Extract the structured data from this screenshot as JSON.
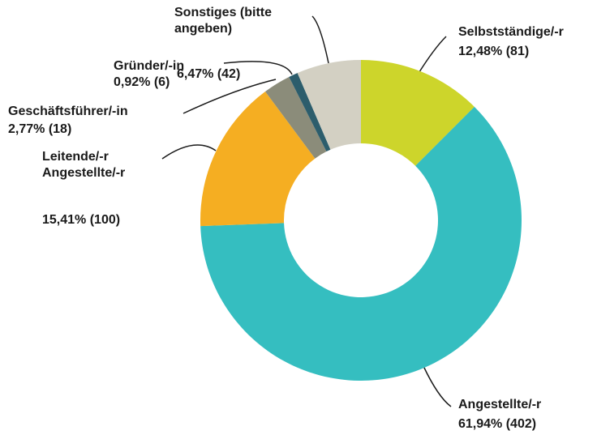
{
  "chart_data": {
    "type": "donut",
    "categories": [
      "Selbstständige/-r",
      "Angestellte/-r",
      "Leitende/-r Angestellte/-r",
      "Geschäftsführer/-in",
      "Gründer/-in",
      "Sonstiges (bitte angeben)"
    ],
    "values": [
      12.48,
      61.94,
      15.41,
      2.77,
      0.92,
      6.47
    ],
    "value_labels": [
      "12,48% (81)",
      "61,94% (402)",
      "15,41% (100)",
      "2,77% (18)",
      "0,92% (6)",
      "6,47% (42)"
    ],
    "colors": [
      "#cdd52b",
      "#35bec0",
      "#f5ae22",
      "#8b8c7a",
      "#2c5d6c",
      "#d3d0c3"
    ]
  }
}
